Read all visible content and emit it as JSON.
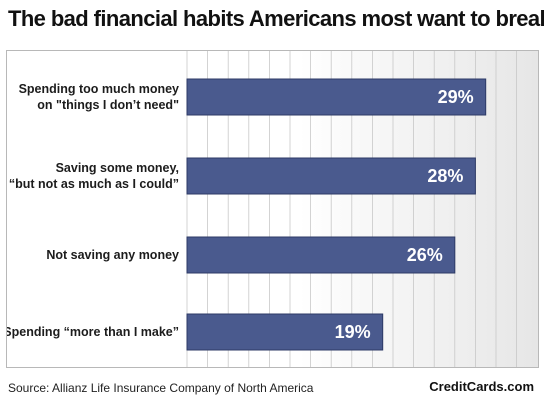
{
  "chart_data": {
    "type": "bar",
    "orientation": "horizontal",
    "title": "The bad financial habits Americans most want to break",
    "categories": [
      [
        "Spending too much money",
        "on \"things I don’t need\""
      ],
      [
        "Saving some money,",
        "“but not as much as I could”"
      ],
      [
        "Not saving any money"
      ],
      [
        "Spending “more than I make”"
      ]
    ],
    "values": [
      29,
      28,
      26,
      19
    ],
    "value_labels": [
      "29%",
      "28%",
      "26%",
      "19%"
    ],
    "xlim": [
      0,
      38
    ],
    "grid": true,
    "legend": "none",
    "bar_color": "#4a5a8e",
    "bar_border": "#2d3a66",
    "grid_color": "#c8c8c8"
  },
  "footer": {
    "source": "Source: Allianz Life Insurance Company of North America",
    "brand": "CreditCards.com"
  }
}
